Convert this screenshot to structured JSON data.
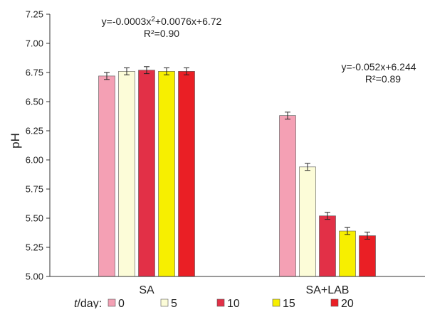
{
  "chart_data": {
    "type": "bar",
    "title": "",
    "xlabel": "",
    "ylabel": "pH",
    "ylim": [
      5.0,
      7.25
    ],
    "yticks": [
      5.0,
      5.25,
      5.5,
      5.75,
      6.0,
      6.25,
      6.5,
      6.75,
      7.0,
      7.25
    ],
    "ytick_labels": [
      "5.00",
      "5.25",
      "5.50",
      "5.75",
      "6.00",
      "6.25",
      "6.50",
      "6.75",
      "7.00",
      "7.25"
    ],
    "grid": false,
    "legend_position": "bottom",
    "categories": [
      "SA",
      "SA+LAB"
    ],
    "legend_title": "t/day:",
    "series": [
      {
        "name": "0",
        "color": "#f4a0b4",
        "values": [
          6.72,
          6.38
        ],
        "errors": [
          0.03,
          0.03
        ]
      },
      {
        "name": "5",
        "color": "#fcfcd8",
        "values": [
          6.76,
          5.94
        ],
        "errors": [
          0.03,
          0.03
        ]
      },
      {
        "name": "10",
        "color": "#e23047",
        "values": [
          6.77,
          5.52
        ],
        "errors": [
          0.03,
          0.03
        ]
      },
      {
        "name": "15",
        "color": "#f7ef00",
        "values": [
          6.76,
          5.39
        ],
        "errors": [
          0.03,
          0.03
        ]
      },
      {
        "name": "20",
        "color": "#ea1f25",
        "values": [
          6.76,
          5.35
        ],
        "errors": [
          0.03,
          0.03
        ]
      }
    ],
    "annotations": [
      {
        "equation": "y=-0.0003x",
        "superscript": "2",
        "equation_rest": "+0.0076x+6.72",
        "r2": "R²=0.90"
      },
      {
        "equation": "y=-0.052x+6.244",
        "superscript": "",
        "equation_rest": "",
        "r2": "R²=0.89"
      }
    ]
  }
}
